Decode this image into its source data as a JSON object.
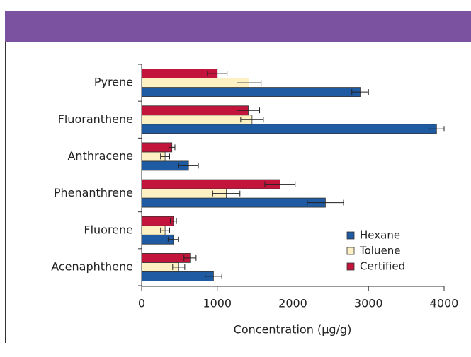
{
  "chart_data": {
    "type": "barh",
    "xlabel": "Concentration (μg/g)",
    "categories": [
      "Pyrene",
      "Fluoranthene",
      "Anthracene",
      "Phenanthrene",
      "Fluorene",
      "Acenaphthene"
    ],
    "series": [
      {
        "name": "Hexane",
        "color": "#1f5ba3",
        "values": [
          2890,
          3900,
          620,
          2430,
          420,
          950
        ],
        "errors": [
          110,
          100,
          130,
          240,
          70,
          110
        ]
      },
      {
        "name": "Toluene",
        "color": "#fdf1c4",
        "values": [
          1420,
          1460,
          310,
          1120,
          310,
          490
        ],
        "errors": [
          160,
          150,
          60,
          180,
          60,
          80
        ]
      },
      {
        "name": "Certified",
        "color": "#c3143c",
        "values": [
          1000,
          1410,
          400,
          1830,
          420,
          640
        ],
        "errors": [
          130,
          150,
          40,
          200,
          40,
          80
        ]
      }
    ],
    "xlim": [
      0,
      4000
    ],
    "xticks": [
      0,
      1000,
      2000,
      3000,
      4000
    ],
    "legend": "lower right"
  }
}
